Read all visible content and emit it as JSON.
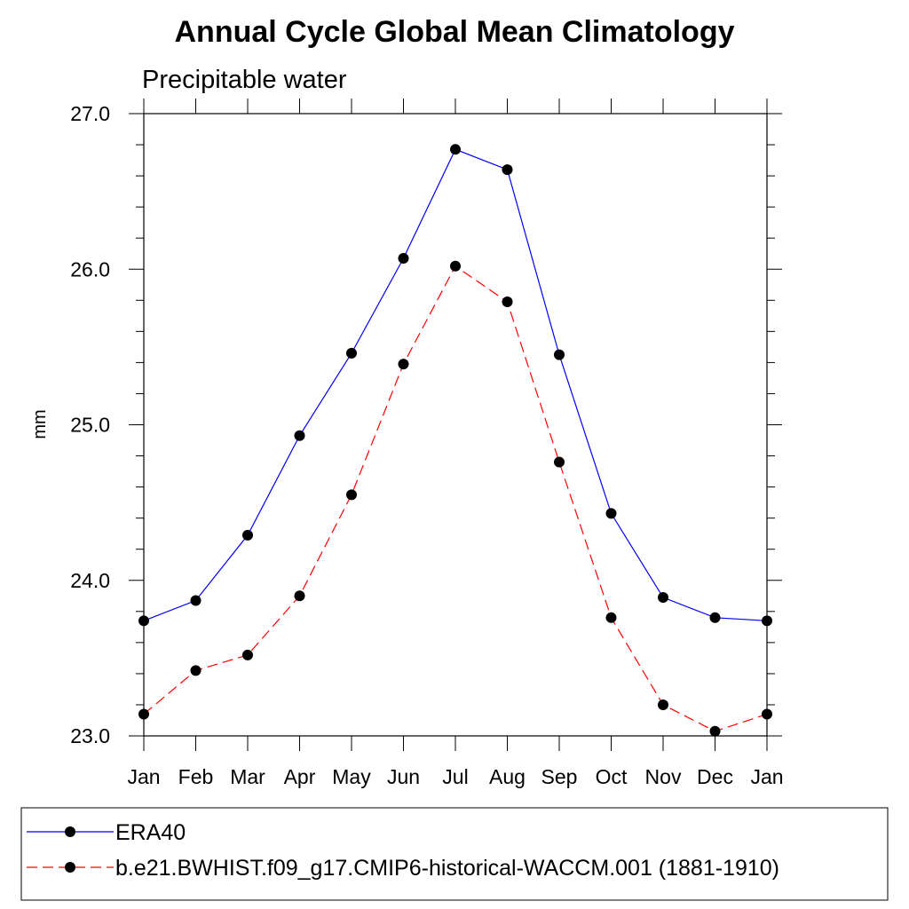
{
  "chart_data": {
    "type": "line",
    "title": "Annual Cycle Global Mean Climatology",
    "subtitle": "Precipitable water",
    "ylabel": "mm",
    "xlabel": "",
    "categories": [
      "Jan",
      "Feb",
      "Mar",
      "Apr",
      "May",
      "Jun",
      "Jul",
      "Aug",
      "Sep",
      "Oct",
      "Nov",
      "Dec",
      "Jan"
    ],
    "ylim": [
      23.0,
      27.0
    ],
    "yticks": [
      "23.0",
      "24.0",
      "25.0",
      "26.0",
      "27.0"
    ],
    "series": [
      {
        "name": "ERA40",
        "color": "#0000ff",
        "dash": "solid",
        "values": [
          23.74,
          23.87,
          24.29,
          24.93,
          25.46,
          26.07,
          26.77,
          26.64,
          25.45,
          24.43,
          23.89,
          23.76,
          23.74
        ]
      },
      {
        "name": "b.e21.BWHIST.f09_g17.CMIP6-historical-WACCM.001 (1881-1910)",
        "color": "#ff0000",
        "dash": "dashed",
        "values": [
          23.14,
          23.42,
          23.52,
          23.9,
          24.55,
          25.39,
          26.02,
          25.79,
          24.76,
          23.76,
          23.2,
          23.03,
          23.14
        ]
      }
    ],
    "legend_position": "bottom",
    "grid": false
  }
}
